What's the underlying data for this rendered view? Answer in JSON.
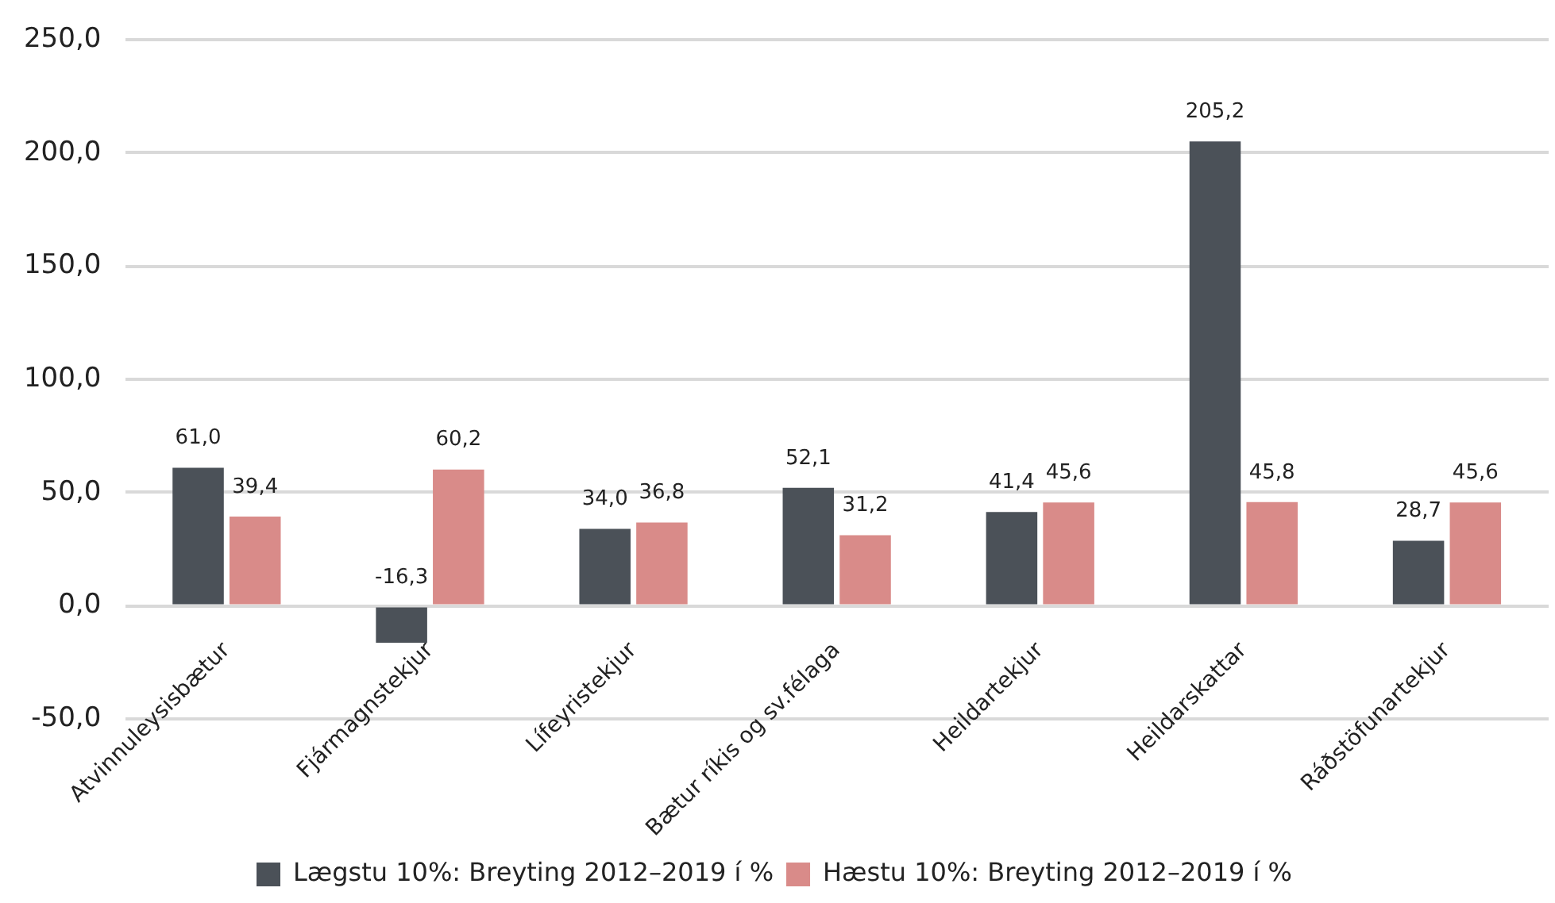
{
  "chart_data": {
    "type": "bar",
    "categories": [
      "Atvinnuleysisbætur",
      "Fjármagnstekjur",
      "Lífeyristekjur",
      "Bætur ríkis og sv.félaga",
      "Heildartekjur",
      "Heildarskattar",
      "Ráðstöfunartekjur"
    ],
    "series": [
      {
        "name": "Lægstu 10%: Breyting 2012–2019 í %",
        "color": "#4b5158",
        "values": [
          61.0,
          -16.3,
          34.0,
          52.1,
          41.4,
          205.2,
          28.7
        ],
        "value_labels": [
          "61,0",
          "-16,3",
          "34,0",
          "52,1",
          "41,4",
          "205,2",
          "28,7"
        ]
      },
      {
        "name": "Hæstu 10%: Breyting 2012–2019 í %",
        "color": "#d98b89",
        "values": [
          39.4,
          60.2,
          36.8,
          31.2,
          45.6,
          45.8,
          45.6
        ],
        "value_labels": [
          "39,4",
          "60,2",
          "36,8",
          "31,2",
          "45,6",
          "45,8",
          "45,6"
        ]
      }
    ],
    "ylim": [
      -50,
      250
    ],
    "yticks": [
      {
        "value": -50,
        "label": "-50,0"
      },
      {
        "value": 0,
        "label": "0,0"
      },
      {
        "value": 50,
        "label": "50,0"
      },
      {
        "value": 100,
        "label": "100,0"
      },
      {
        "value": 150,
        "label": "150,0"
      },
      {
        "value": 200,
        "label": "200,0"
      },
      {
        "value": 250,
        "label": "250,0"
      }
    ],
    "grid": "y",
    "legend": "bottom"
  }
}
